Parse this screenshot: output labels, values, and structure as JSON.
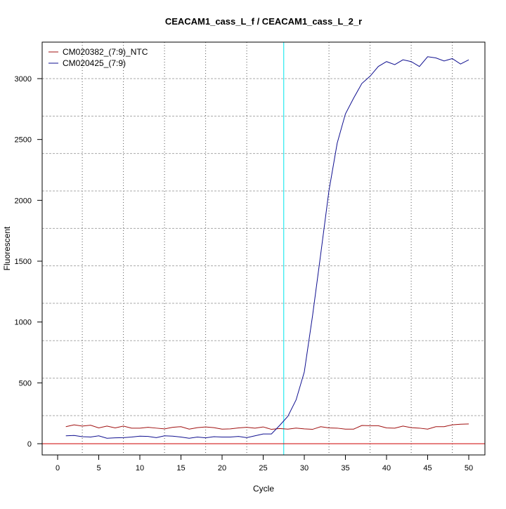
{
  "chart_data": {
    "type": "line",
    "title": "CEACAM1_cass_L_f / CEACAM1_cass_L_2_r",
    "xlabel": "Cycle",
    "ylabel": "Fluorescent",
    "xlim": [
      -2,
      52
    ],
    "ylim": [
      -80,
      3360
    ],
    "x_ticks": [
      0,
      5,
      10,
      15,
      20,
      25,
      30,
      35,
      40,
      45,
      50
    ],
    "y_ticks": [
      0,
      500,
      1000,
      1500,
      2000,
      2500,
      3000
    ],
    "grid": true,
    "legend_position": "top-left",
    "threshold": 0,
    "threshold_color": "#cc0000",
    "marker_cycle": 27.5,
    "marker_color": "#00e5ee",
    "x": [
      1,
      2,
      3,
      4,
      5,
      6,
      7,
      8,
      9,
      10,
      11,
      12,
      13,
      14,
      15,
      16,
      17,
      18,
      19,
      20,
      21,
      22,
      23,
      24,
      25,
      26,
      27,
      28,
      29,
      30,
      31,
      32,
      33,
      34,
      35,
      36,
      37,
      38,
      39,
      40,
      41,
      42,
      43,
      44,
      45,
      46,
      47,
      48,
      49,
      50
    ],
    "series": [
      {
        "name": "CM020382_(7:9)_NTC",
        "color": "#a01010",
        "values": [
          140,
          155,
          145,
          152,
          130,
          145,
          130,
          145,
          128,
          128,
          135,
          128,
          122,
          135,
          140,
          120,
          132,
          138,
          132,
          120,
          122,
          130,
          135,
          128,
          138,
          118,
          125,
          120,
          128,
          122,
          118,
          140,
          130,
          128,
          120,
          120,
          150,
          148,
          148,
          130,
          128,
          145,
          132,
          128,
          120,
          140,
          140,
          155,
          160,
          162
        ]
      },
      {
        "name": "CM020425_(7:9)",
        "color": "#101090",
        "values": [
          65,
          68,
          58,
          55,
          65,
          45,
          48,
          50,
          55,
          62,
          60,
          50,
          65,
          62,
          55,
          45,
          55,
          48,
          58,
          55,
          55,
          60,
          50,
          65,
          80,
          80,
          150,
          225,
          360,
          590,
          1050,
          1560,
          2080,
          2470,
          2710,
          2840,
          2960,
          3020,
          3100,
          3140,
          3115,
          3155,
          3140,
          3100,
          3180,
          3170,
          3145,
          3165,
          3120,
          3155
        ]
      }
    ]
  }
}
